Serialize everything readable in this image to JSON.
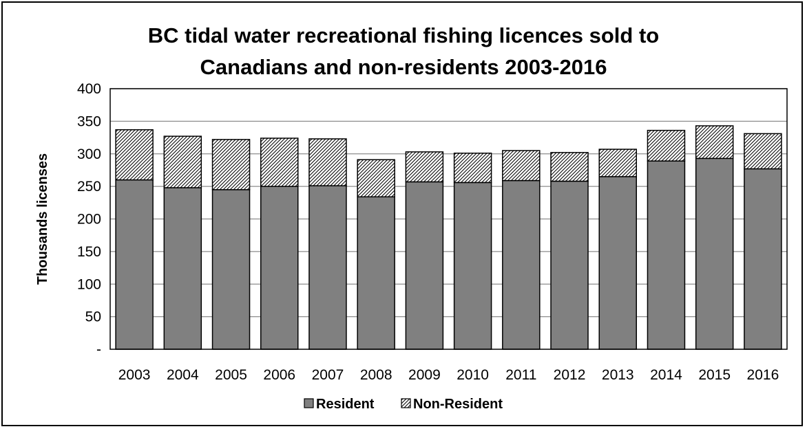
{
  "chart_data": {
    "type": "bar",
    "stacked": true,
    "title_lines": [
      "BC tidal water recreational fishing licences sold to",
      "Canadians and non-residents 2003-2016"
    ],
    "xlabel": "",
    "ylabel": "Thousands licenses",
    "ylim": [
      0,
      400
    ],
    "y_ticks": [
      0,
      50,
      100,
      150,
      200,
      250,
      300,
      350,
      400
    ],
    "y_tick_labels": [
      "-",
      "50",
      "100",
      "150",
      "200",
      "250",
      "300",
      "350",
      "400"
    ],
    "grid": true,
    "legend_position": "bottom",
    "categories": [
      "2003",
      "2004",
      "2005",
      "2006",
      "2007",
      "2008",
      "2009",
      "2010",
      "2011",
      "2012",
      "2013",
      "2014",
      "2015",
      "2016"
    ],
    "series": [
      {
        "name": "Resident",
        "color": "#808080",
        "pattern": "solid",
        "values": [
          260,
          248,
          245,
          250,
          251,
          234,
          257,
          256,
          259,
          258,
          265,
          289,
          293,
          277
        ]
      },
      {
        "name": "Non-Resident",
        "color": "#ffffff",
        "pattern": "diagonal-hatch",
        "values": [
          77,
          79,
          77,
          74,
          72,
          57,
          46,
          45,
          46,
          44,
          42,
          47,
          50,
          54
        ]
      }
    ]
  }
}
